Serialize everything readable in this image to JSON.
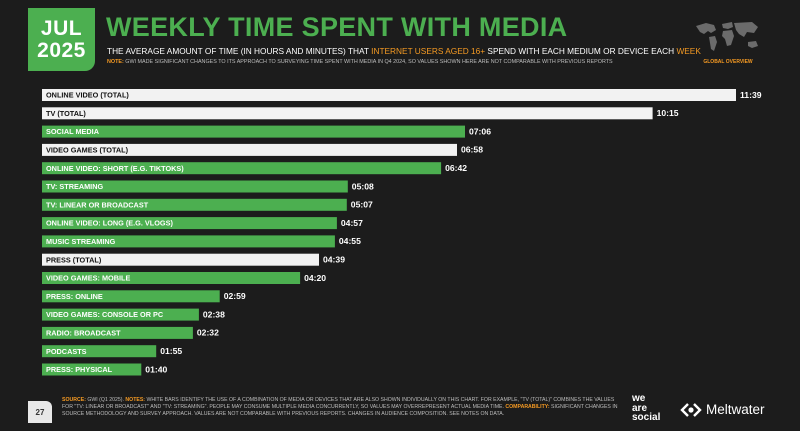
{
  "header": {
    "month": "JUL",
    "year": "2025",
    "title": "WEEKLY TIME SPENT WITH MEDIA",
    "subtitle_pre": "THE AVERAGE AMOUNT OF TIME (IN HOURS AND MINUTES) THAT ",
    "subtitle_hl1": "INTERNET USERS AGED 16+",
    "subtitle_mid": " SPEND WITH EACH MEDIUM OR DEVICE EACH ",
    "subtitle_hl2": "WEEK",
    "note_label": "NOTE:",
    "note_text": " GWI MADE SIGNIFICANT CHANGES TO ITS APPROACH TO SURVEYING TIME SPENT WITH MEDIA IN Q4 2024, SO VALUES SHOWN HERE ARE NOT COMPARABLE WITH PREVIOUS REPORTS",
    "global_label": "GLOBAL OVERVIEW"
  },
  "colors": {
    "green": "#4caf50",
    "white_bar": "#f2f2f2",
    "accent": "#f59a23",
    "background": "#1c1c1c"
  },
  "chart_data": {
    "type": "bar",
    "orientation": "horizontal",
    "value_unit": "hours:minutes",
    "categories": [
      "ONLINE VIDEO (TOTAL)",
      "TV (TOTAL)",
      "SOCIAL MEDIA",
      "VIDEO GAMES (TOTAL)",
      "ONLINE VIDEO: SHORT (E.G. TIKTOKS)",
      "TV: STREAMING",
      "TV: LINEAR OR BROADCAST",
      "ONLINE VIDEO: LONG (E.G. VLOGS)",
      "MUSIC STREAMING",
      "PRESS (TOTAL)",
      "VIDEO GAMES: MOBILE",
      "PRESS: ONLINE",
      "VIDEO GAMES: CONSOLE OR PC",
      "RADIO: BROADCAST",
      "PODCASTS",
      "PRESS: PHYSICAL"
    ],
    "labels": [
      "11:39",
      "10:15",
      "07:06",
      "06:58",
      "06:42",
      "05:08",
      "05:07",
      "04:57",
      "04:55",
      "04:39",
      "04:20",
      "02:59",
      "02:38",
      "02:32",
      "01:55",
      "01:40"
    ],
    "values_minutes": [
      699,
      615,
      426,
      418,
      402,
      308,
      307,
      297,
      295,
      279,
      260,
      179,
      158,
      152,
      115,
      100
    ],
    "is_total": [
      true,
      true,
      false,
      true,
      false,
      false,
      false,
      false,
      false,
      true,
      false,
      false,
      false,
      false,
      false,
      false
    ]
  },
  "footer": {
    "page": "27",
    "source_label": "SOURCE:",
    "source_text": " GWI (Q1 2025). ",
    "notes_label": "NOTES:",
    "notes_text": " WHITE BARS IDENTIFY THE USE OF A COMBINATION OF MEDIA OR DEVICES THAT ARE ALSO SHOWN INDIVIDUALLY ON THIS CHART. FOR EXAMPLE, \"TV (TOTAL)\" COMBINES THE VALUES FOR \"TV: LINEAR OR BROADCAST\" AND \"TV: STREAMING\". PEOPLE MAY CONSUME MULTIPLE MEDIA CONCURRENTLY, SO VALUES MAY OVERREPRESENT ACTUAL MEDIA TIME. ",
    "comparability_label": "COMPARABILITY:",
    "comparability_text": " SIGNIFICANT CHANGES IN SOURCE METHODOLOGY AND SURVEY APPROACH. VALUES ARE NOT COMPARABLE WITH PREVIOUS REPORTS. CHANGES IN AUDIENCE COMPOSITION. SEE NOTES ON DATA.",
    "brand_we": "we",
    "brand_are": "are",
    "brand_social": "social",
    "meltwater": "Meltwater"
  }
}
